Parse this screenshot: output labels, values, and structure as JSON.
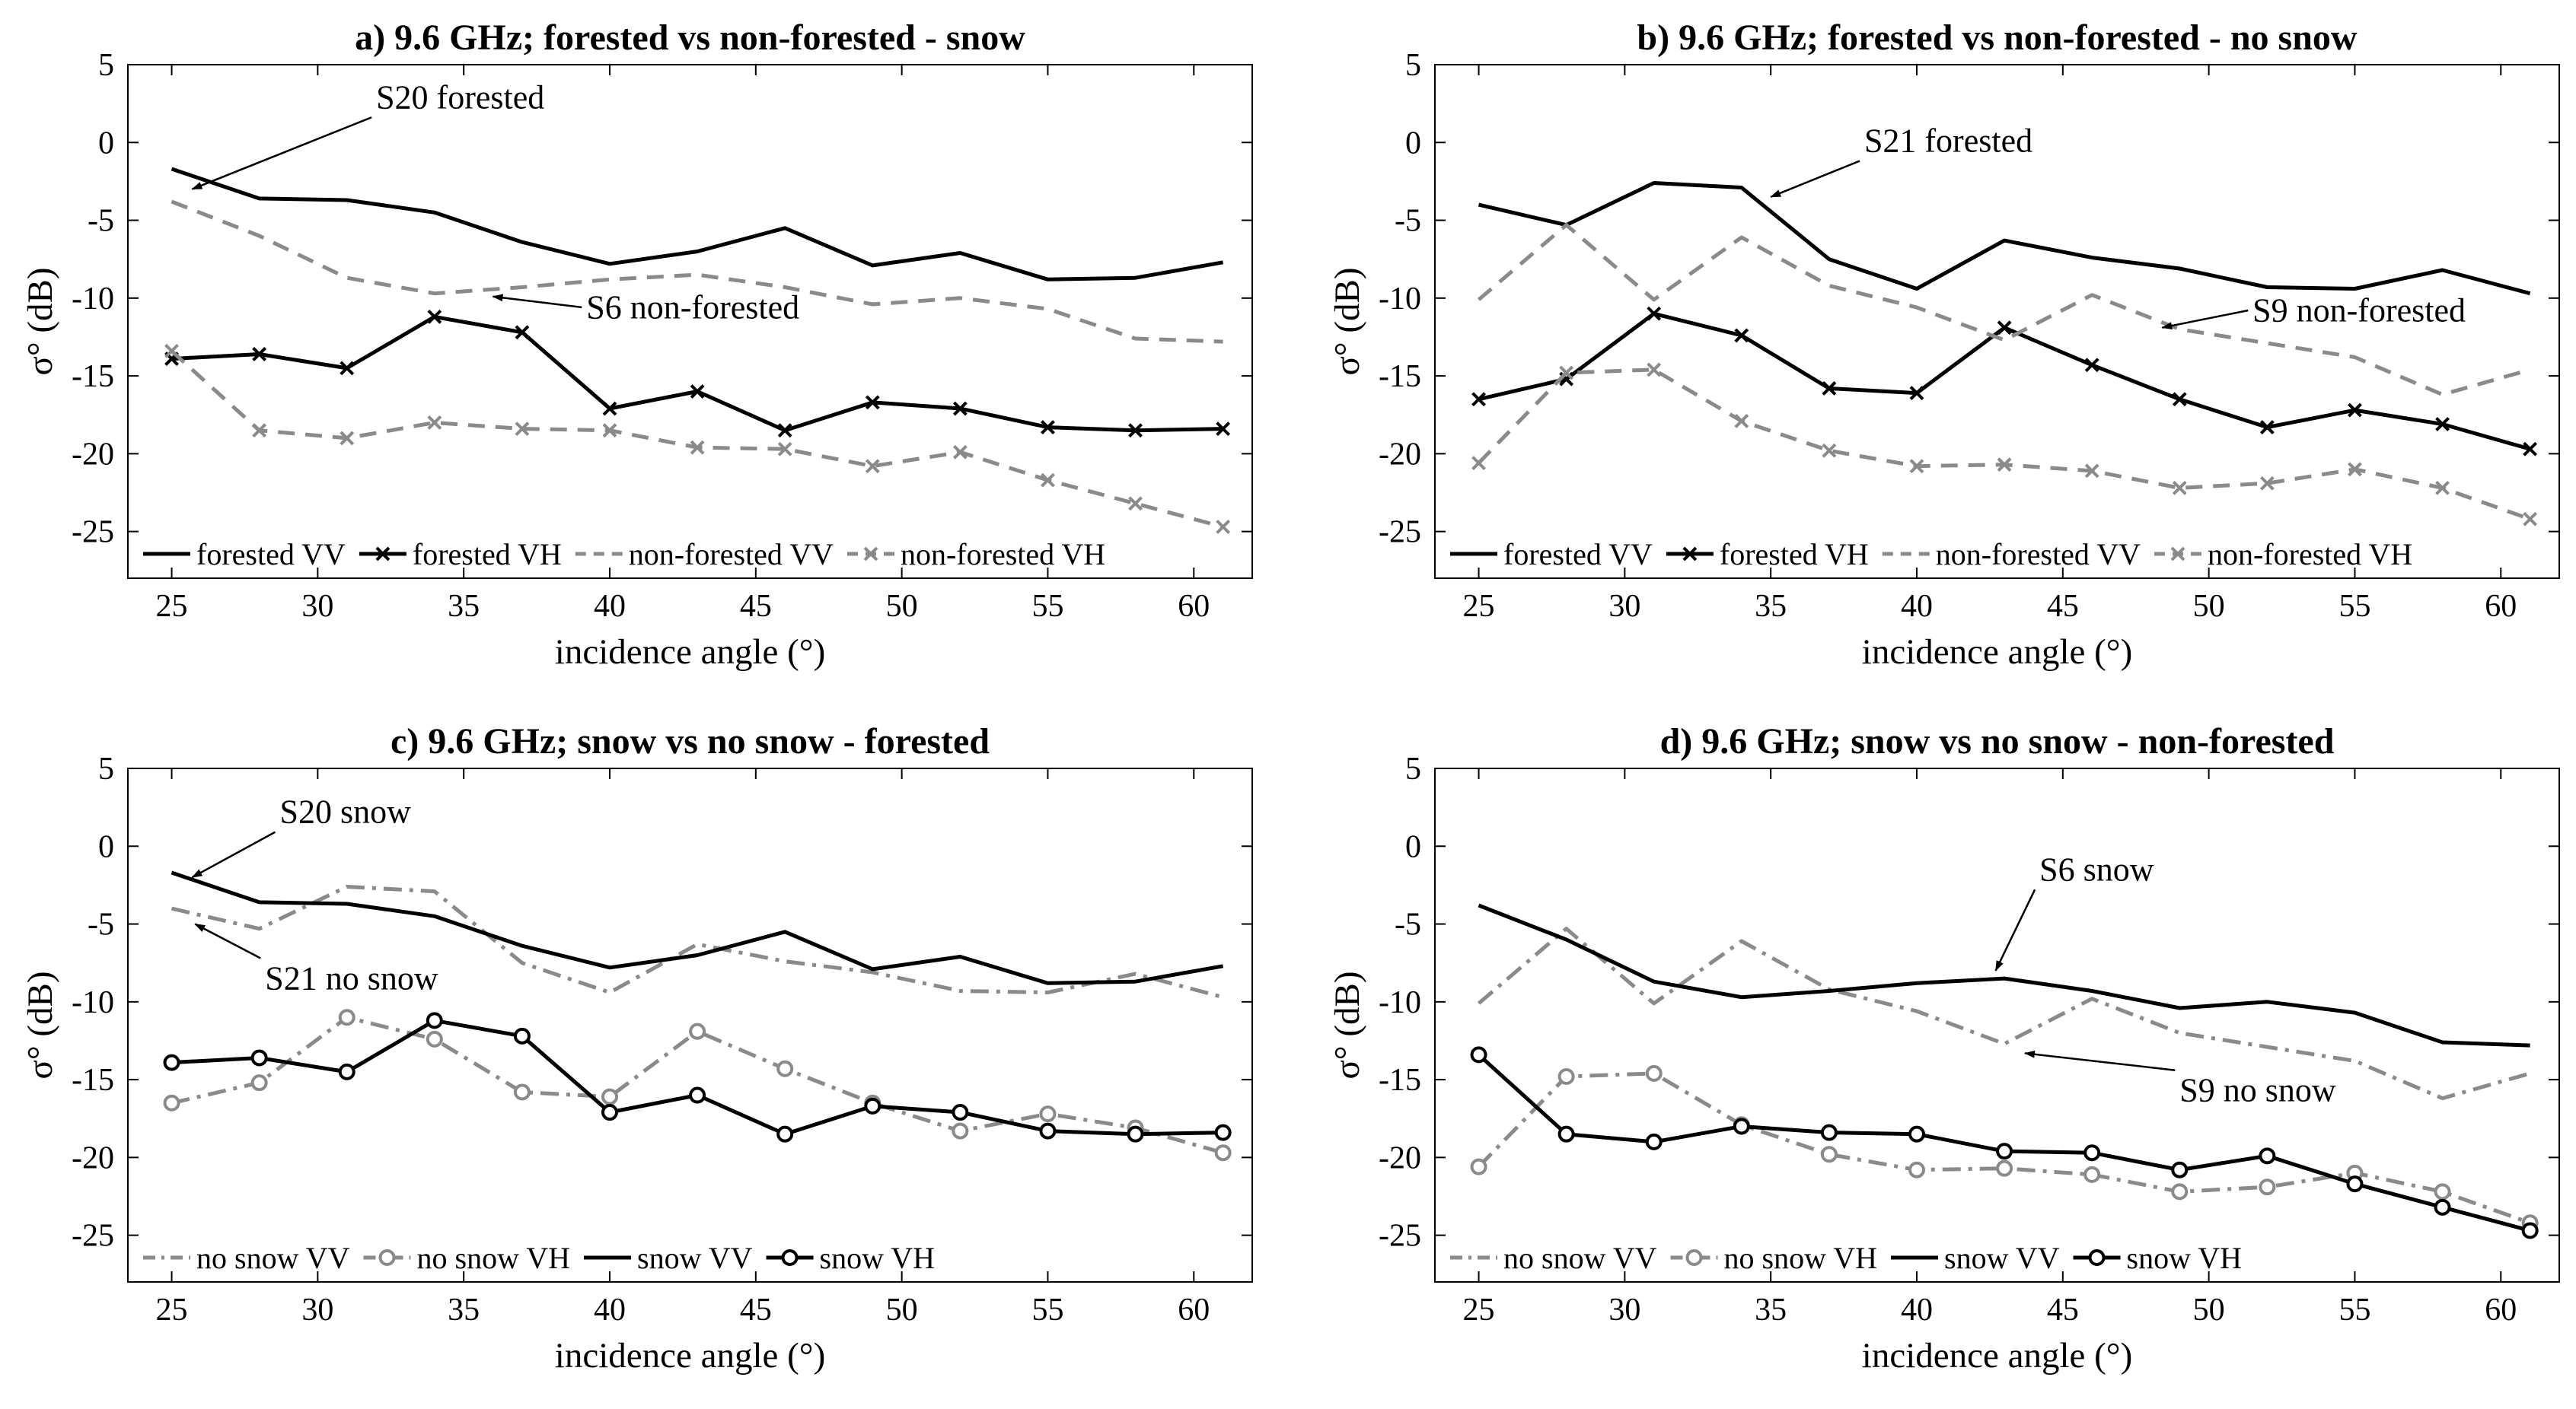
{
  "chart_data": [
    {
      "id": "a",
      "type": "line",
      "title": "a) 9.6 GHz; forested vs non-forested - snow",
      "xlabel": "incidence angle (°)",
      "ylabel": "σ° (dB)",
      "xlim": [
        23.5,
        62
      ],
      "ylim": [
        -28,
        5
      ],
      "xticks": [
        25,
        30,
        35,
        40,
        45,
        50,
        55,
        60
      ],
      "yticks": [
        5,
        0,
        -5,
        -10,
        -15,
        -20,
        -25
      ],
      "x": [
        25,
        28,
        31,
        34,
        37,
        40,
        43,
        46,
        49,
        52,
        55,
        58,
        61
      ],
      "legend_position": "bottom",
      "series": [
        {
          "name": "forested VV",
          "style": "solid-black",
          "values": [
            -1.7,
            -3.6,
            -3.7,
            -4.5,
            -6.4,
            -7.8,
            -7.0,
            -5.5,
            -7.9,
            -7.1,
            -8.8,
            -8.7,
            -7.7
          ]
        },
        {
          "name": "forested VH",
          "style": "solid-black-x",
          "values": [
            -13.9,
            -13.6,
            -14.5,
            -11.2,
            -12.2,
            -17.1,
            -16.0,
            -18.5,
            -16.7,
            -17.1,
            -18.3,
            -18.5,
            -18.4
          ]
        },
        {
          "name": "non-forested VV",
          "style": "dashed-gray",
          "values": [
            -3.8,
            -6.0,
            -8.7,
            -9.7,
            -9.3,
            -8.8,
            -8.5,
            -9.3,
            -10.4,
            -10.0,
            -10.7,
            -12.6,
            -12.8
          ]
        },
        {
          "name": "non-forested VH",
          "style": "dashed-gray-x",
          "values": [
            -13.4,
            -18.5,
            -19.0,
            -18.0,
            -18.4,
            -18.5,
            -19.6,
            -19.7,
            -20.8,
            -19.9,
            -21.7,
            -23.2,
            -24.7
          ]
        }
      ],
      "annotations": [
        {
          "text": "S20 forested",
          "target": [
            25.7,
            -3.0
          ],
          "anchor": [
            32.0,
            2.2
          ]
        },
        {
          "text": "S6 non-forested",
          "target": [
            36.0,
            -9.9
          ],
          "anchor": [
            39.2,
            -11.3
          ]
        }
      ]
    },
    {
      "id": "b",
      "type": "line",
      "title": "b) 9.6 GHz; forested vs non-forested - no snow",
      "xlabel": "incidence angle (°)",
      "ylabel": "σ° (dB)",
      "xlim": [
        23.5,
        62
      ],
      "ylim": [
        -28,
        5
      ],
      "xticks": [
        25,
        30,
        35,
        40,
        45,
        50,
        55,
        60
      ],
      "yticks": [
        5,
        0,
        -5,
        -10,
        -15,
        -20,
        -25
      ],
      "x": [
        25,
        28,
        31,
        34,
        37,
        40,
        43,
        46,
        49,
        52,
        55,
        58,
        61
      ],
      "legend_position": "bottom",
      "series": [
        {
          "name": "forested VV",
          "style": "solid-black",
          "values": [
            -4.0,
            -5.3,
            -2.6,
            -2.9,
            -7.5,
            -9.4,
            -6.3,
            -7.4,
            -8.1,
            -9.3,
            -9.4,
            -8.2,
            -9.7
          ]
        },
        {
          "name": "forested VH",
          "style": "solid-black-x",
          "values": [
            -16.5,
            -15.2,
            -11.0,
            -12.4,
            -15.8,
            -16.1,
            -11.9,
            -14.3,
            -16.5,
            -18.3,
            -17.2,
            -18.1,
            -19.7
          ]
        },
        {
          "name": "non-forested VV",
          "style": "dashed-gray",
          "values": [
            -10.1,
            -5.3,
            -10.1,
            -6.1,
            -9.2,
            -10.6,
            -12.7,
            -9.8,
            -12.0,
            -12.9,
            -13.8,
            -16.2,
            -14.6
          ]
        },
        {
          "name": "non-forested VH",
          "style": "dashed-gray-x",
          "values": [
            -20.6,
            -14.8,
            -14.6,
            -17.9,
            -19.8,
            -20.8,
            -20.7,
            -21.1,
            -22.2,
            -21.9,
            -21.0,
            -22.2,
            -24.2
          ]
        }
      ],
      "annotations": [
        {
          "text": "S21 forested",
          "target": [
            35.0,
            -3.5
          ],
          "anchor": [
            38.2,
            -0.6
          ]
        },
        {
          "text": "S9 non-forested",
          "target": [
            48.4,
            -11.9
          ],
          "anchor": [
            51.5,
            -11.5
          ]
        }
      ]
    },
    {
      "id": "c",
      "type": "line",
      "title": "c) 9.6 GHz; snow vs no snow - forested",
      "xlabel": "incidence angle (°)",
      "ylabel": "σ° (dB)",
      "xlim": [
        23.5,
        62
      ],
      "ylim": [
        -28,
        5
      ],
      "xticks": [
        25,
        30,
        35,
        40,
        45,
        50,
        55,
        60
      ],
      "yticks": [
        5,
        0,
        -5,
        -10,
        -15,
        -20,
        -25
      ],
      "x": [
        25,
        28,
        31,
        34,
        37,
        40,
        43,
        46,
        49,
        52,
        55,
        58,
        61
      ],
      "legend_position": "bottom",
      "series": [
        {
          "name": "no snow VV",
          "style": "dashdot-gray",
          "values": [
            -4.0,
            -5.3,
            -2.6,
            -2.9,
            -7.5,
            -9.4,
            -6.3,
            -7.4,
            -8.1,
            -9.3,
            -9.4,
            -8.2,
            -9.7
          ]
        },
        {
          "name": "no snow VH",
          "style": "dashdot-gray-o",
          "values": [
            -16.5,
            -15.2,
            -11.0,
            -12.4,
            -15.8,
            -16.1,
            -11.9,
            -14.3,
            -16.5,
            -18.3,
            -17.2,
            -18.1,
            -19.7
          ]
        },
        {
          "name": "snow VV",
          "style": "solid-black",
          "values": [
            -1.7,
            -3.6,
            -3.7,
            -4.5,
            -6.4,
            -7.8,
            -7.0,
            -5.5,
            -7.9,
            -7.1,
            -8.8,
            -8.7,
            -7.7
          ]
        },
        {
          "name": "snow VH",
          "style": "solid-black-o",
          "values": [
            -13.9,
            -13.6,
            -14.5,
            -11.2,
            -12.2,
            -17.1,
            -16.0,
            -18.5,
            -16.7,
            -17.1,
            -18.3,
            -18.5,
            -18.4
          ]
        }
      ],
      "annotations": [
        {
          "text": "S20 snow",
          "target": [
            25.7,
            -2.0
          ],
          "anchor": [
            28.7,
            1.5
          ]
        },
        {
          "text": "S21 no snow",
          "target": [
            25.8,
            -5.0
          ],
          "anchor": [
            28.2,
            -9.2
          ]
        }
      ]
    },
    {
      "id": "d",
      "type": "line",
      "title": "d) 9.6 GHz; snow vs no snow - non-forested",
      "xlabel": "incidence angle (°)",
      "ylabel": "σ° (dB)",
      "xlim": [
        23.5,
        62
      ],
      "ylim": [
        -28,
        5
      ],
      "xticks": [
        25,
        30,
        35,
        40,
        45,
        50,
        55,
        60
      ],
      "yticks": [
        5,
        0,
        -5,
        -10,
        -15,
        -20,
        -25
      ],
      "x": [
        25,
        28,
        31,
        34,
        37,
        40,
        43,
        46,
        49,
        52,
        55,
        58,
        61
      ],
      "legend_position": "bottom",
      "series": [
        {
          "name": "no snow VV",
          "style": "dashdot-gray",
          "values": [
            -10.1,
            -5.3,
            -10.1,
            -6.1,
            -9.2,
            -10.6,
            -12.7,
            -9.8,
            -12.0,
            -12.9,
            -13.8,
            -16.2,
            -14.6
          ]
        },
        {
          "name": "no snow VH",
          "style": "dashdot-gray-o",
          "values": [
            -20.6,
            -14.8,
            -14.6,
            -17.9,
            -19.8,
            -20.8,
            -20.7,
            -21.1,
            -22.2,
            -21.9,
            -21.0,
            -22.2,
            -24.2
          ]
        },
        {
          "name": "snow VV",
          "style": "solid-black",
          "values": [
            -3.8,
            -6.0,
            -8.7,
            -9.7,
            -9.3,
            -8.8,
            -8.5,
            -9.3,
            -10.4,
            -10.0,
            -10.7,
            -12.6,
            -12.8
          ]
        },
        {
          "name": "snow VH",
          "style": "solid-black-o",
          "values": [
            -13.4,
            -18.5,
            -19.0,
            -18.0,
            -18.4,
            -18.5,
            -19.6,
            -19.7,
            -20.8,
            -19.9,
            -21.7,
            -23.2,
            -24.7
          ]
        }
      ],
      "annotations": [
        {
          "text": "S6 snow",
          "target": [
            42.7,
            -8.0
          ],
          "anchor": [
            44.2,
            -2.2
          ]
        },
        {
          "text": "S9 no snow",
          "target": [
            43.7,
            -13.3
          ],
          "anchor": [
            49.0,
            -16.4
          ]
        }
      ]
    }
  ],
  "colors": {
    "black": "#000000",
    "gray": "#8a8a8a"
  }
}
